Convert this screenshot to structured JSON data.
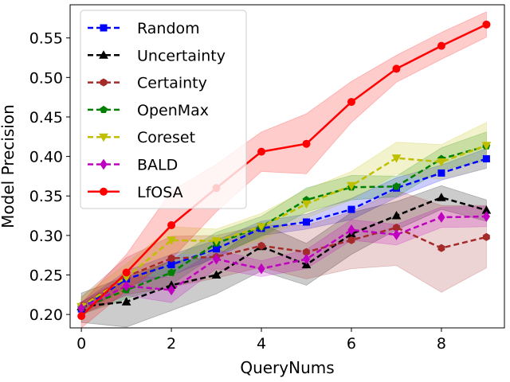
{
  "chart_data": {
    "type": "line",
    "xlabel": "QueryNums",
    "ylabel": "Model Precision",
    "xlim": [
      -0.25,
      9.4
    ],
    "ylim": [
      0.183,
      0.592
    ],
    "xticks": [
      0,
      2,
      4,
      6,
      8
    ],
    "xtick_labels": [
      "0",
      "2",
      "4",
      "6",
      "8"
    ],
    "yticks": [
      0.2,
      0.25,
      0.3,
      0.35,
      0.4,
      0.45,
      0.5,
      0.55
    ],
    "ytick_labels": [
      "0.20",
      "0.25",
      "0.30",
      "0.35",
      "0.40",
      "0.45",
      "0.50",
      "0.55"
    ],
    "legend_position": "top-left",
    "x": [
      0,
      1,
      2,
      3,
      4,
      5,
      6,
      7,
      8,
      9
    ],
    "series": [
      {
        "name": "Random",
        "color": "#0000ff",
        "dash": "dashed",
        "marker": "square",
        "values": [
          0.207,
          0.245,
          0.263,
          0.283,
          0.309,
          0.317,
          0.333,
          0.36,
          0.379,
          0.397
        ],
        "lower": [
          0.2,
          0.236,
          0.25,
          0.272,
          0.3,
          0.308,
          0.32,
          0.348,
          0.37,
          0.385
        ],
        "upper": [
          0.215,
          0.255,
          0.276,
          0.294,
          0.318,
          0.327,
          0.347,
          0.373,
          0.389,
          0.41
        ]
      },
      {
        "name": "Uncertainty",
        "color": "#000000",
        "dash": "dashed",
        "marker": "triangle",
        "values": [
          0.21,
          0.216,
          0.237,
          0.25,
          0.286,
          0.263,
          0.302,
          0.325,
          0.348,
          0.332
        ],
        "lower": [
          0.19,
          0.184,
          0.205,
          0.226,
          0.255,
          0.237,
          0.276,
          0.307,
          0.333,
          0.318
        ],
        "upper": [
          0.227,
          0.248,
          0.267,
          0.273,
          0.315,
          0.29,
          0.329,
          0.343,
          0.363,
          0.345
        ]
      },
      {
        "name": "Certainty",
        "color": "#a52a2a",
        "dash": "dashed",
        "marker": "hexagon",
        "values": [
          0.211,
          0.248,
          0.271,
          0.273,
          0.287,
          0.279,
          0.294,
          0.31,
          0.284,
          0.298
        ],
        "lower": [
          0.2,
          0.225,
          0.235,
          0.246,
          0.26,
          0.245,
          0.258,
          0.262,
          0.228,
          0.259
        ],
        "upper": [
          0.222,
          0.272,
          0.299,
          0.3,
          0.313,
          0.313,
          0.33,
          0.357,
          0.338,
          0.338
        ]
      },
      {
        "name": "OpenMax",
        "color": "#008000",
        "dash": "dashed",
        "marker": "pentagon",
        "values": [
          0.208,
          0.231,
          0.253,
          0.29,
          0.311,
          0.345,
          0.361,
          0.362,
          0.397,
          0.413
        ],
        "lower": [
          0.2,
          0.22,
          0.238,
          0.276,
          0.298,
          0.33,
          0.345,
          0.349,
          0.383,
          0.395
        ],
        "upper": [
          0.216,
          0.243,
          0.269,
          0.304,
          0.324,
          0.36,
          0.376,
          0.375,
          0.411,
          0.431
        ]
      },
      {
        "name": "Coreset",
        "color": "#bfbf00",
        "dash": "dashed",
        "marker": "triangle-down",
        "values": [
          0.21,
          0.247,
          0.294,
          0.293,
          0.311,
          0.34,
          0.363,
          0.398,
          0.393,
          0.414
        ],
        "lower": [
          0.198,
          0.23,
          0.277,
          0.278,
          0.294,
          0.322,
          0.345,
          0.378,
          0.371,
          0.385
        ],
        "upper": [
          0.222,
          0.264,
          0.311,
          0.308,
          0.328,
          0.358,
          0.381,
          0.418,
          0.415,
          0.443
        ]
      },
      {
        "name": "BALD",
        "color": "#c000c0",
        "dash": "dashed",
        "marker": "diamond",
        "values": [
          0.208,
          0.236,
          0.231,
          0.27,
          0.258,
          0.27,
          0.307,
          0.301,
          0.323,
          0.324
        ],
        "lower": [
          0.2,
          0.224,
          0.215,
          0.258,
          0.248,
          0.258,
          0.294,
          0.288,
          0.31,
          0.311
        ],
        "upper": [
          0.216,
          0.248,
          0.247,
          0.282,
          0.268,
          0.282,
          0.32,
          0.314,
          0.336,
          0.337
        ]
      },
      {
        "name": "LfOSA",
        "color": "#ff0000",
        "dash": "solid",
        "marker": "circle",
        "values": [
          0.198,
          0.253,
          0.313,
          0.36,
          0.406,
          0.416,
          0.469,
          0.511,
          0.54,
          0.567
        ],
        "lower": [
          0.183,
          0.23,
          0.27,
          0.33,
          0.381,
          0.378,
          0.443,
          0.494,
          0.523,
          0.551
        ],
        "upper": [
          0.214,
          0.276,
          0.356,
          0.39,
          0.431,
          0.454,
          0.495,
          0.528,
          0.557,
          0.583
        ]
      }
    ]
  }
}
